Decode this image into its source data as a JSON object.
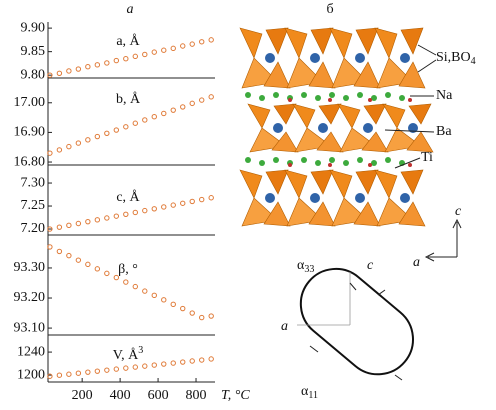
{
  "panel_letters": [
    "а",
    "б"
  ],
  "chart_data": [
    {
      "type": "scatter",
      "title": "a, Å",
      "color": "#e07b39",
      "x": [
        30,
        80,
        130,
        180,
        230,
        280,
        330,
        380,
        430,
        480,
        530,
        580,
        630,
        680,
        730,
        780,
        830,
        880
      ],
      "values": [
        9.8,
        9.804,
        9.809,
        9.813,
        9.818,
        9.822,
        9.826,
        9.831,
        9.835,
        9.84,
        9.844,
        9.849,
        9.853,
        9.857,
        9.862,
        9.866,
        9.871,
        9.875
      ],
      "xlim": [
        20,
        900
      ],
      "ylim": [
        9.794,
        9.913
      ],
      "yticks": [
        {
          "value": 9.8,
          "label": "9.80"
        },
        {
          "value": 9.85,
          "label": "9.85"
        },
        {
          "value": 9.9,
          "label": "9.90"
        }
      ]
    },
    {
      "type": "scatter",
      "title": "b, Å",
      "color": "#e07b39",
      "x": [
        30,
        80,
        130,
        180,
        230,
        280,
        330,
        380,
        430,
        480,
        530,
        580,
        630,
        680,
        730,
        780,
        830,
        880
      ],
      "values": [
        16.83,
        16.841,
        16.852,
        16.864,
        16.875,
        16.886,
        16.897,
        16.908,
        16.919,
        16.931,
        16.942,
        16.953,
        16.964,
        16.975,
        16.986,
        16.998,
        17.009,
        17.02
      ],
      "xlim": [
        20,
        900
      ],
      "ylim": [
        16.79,
        17.06
      ],
      "yticks": [
        {
          "value": 16.8,
          "label": "16.80"
        },
        {
          "value": 16.9,
          "label": "16.90"
        },
        {
          "value": 17.0,
          "label": "17.00"
        }
      ]
    },
    {
      "type": "scatter",
      "title": "c, Å",
      "color": "#e07b39",
      "x": [
        30,
        80,
        130,
        180,
        230,
        280,
        330,
        380,
        430,
        480,
        530,
        580,
        630,
        680,
        730,
        780,
        830,
        880
      ],
      "values": [
        7.2,
        7.204,
        7.208,
        7.212,
        7.216,
        7.22,
        7.224,
        7.228,
        7.232,
        7.236,
        7.24,
        7.244,
        7.248,
        7.252,
        7.256,
        7.26,
        7.264,
        7.268
      ],
      "xlim": [
        20,
        900
      ],
      "ylim": [
        7.187,
        7.324
      ],
      "yticks": [
        {
          "value": 7.2,
          "label": "7.20"
        },
        {
          "value": 7.25,
          "label": "7.25"
        },
        {
          "value": 7.3,
          "label": "7.30"
        }
      ]
    },
    {
      "type": "scatter",
      "title": "β, °",
      "color": "#e07b39",
      "x": [
        30,
        80,
        130,
        180,
        230,
        280,
        330,
        380,
        430,
        480,
        530,
        580,
        630,
        680,
        730,
        780,
        830,
        880
      ],
      "values": [
        93.37,
        93.355,
        93.341,
        93.326,
        93.312,
        93.297,
        93.282,
        93.268,
        93.253,
        93.238,
        93.223,
        93.209,
        93.194,
        93.179,
        93.165,
        93.15,
        93.135,
        93.14
      ],
      "xlim": [
        20,
        900
      ],
      "ylim": [
        93.077,
        93.393
      ],
      "yticks": [
        {
          "value": 93.1,
          "label": "93.10"
        },
        {
          "value": 93.2,
          "label": "93.20"
        },
        {
          "value": 93.3,
          "label": "93.30"
        }
      ]
    },
    {
      "type": "scatter",
      "title": {
        "text": "V, Å",
        "sup": "3"
      },
      "color": "#e07b39",
      "x": [
        30,
        80,
        130,
        180,
        230,
        280,
        330,
        380,
        430,
        480,
        530,
        580,
        630,
        680,
        730,
        780,
        830,
        880
      ],
      "values": [
        1198.0,
        1199.8,
        1201.5,
        1203.3,
        1205.1,
        1206.8,
        1208.6,
        1210.4,
        1212.1,
        1213.9,
        1215.6,
        1217.4,
        1219.2,
        1220.9,
        1222.7,
        1224.5,
        1226.2,
        1228.0
      ],
      "xlim": [
        20,
        900
      ],
      "ylim": [
        1188,
        1261
      ],
      "yticks": [
        1200,
        1240
      ],
      "xticks": [
        200,
        400,
        600,
        800
      ],
      "xlabel": "T, °C"
    }
  ],
  "structure": {
    "labels": [
      {
        "text": "Si,BO",
        "sub": "4"
      },
      {
        "text": "Na"
      },
      {
        "text": "Ba"
      },
      {
        "text": "Ti"
      }
    ],
    "axes": [
      "c",
      "a"
    ]
  },
  "expansion": {
    "alpha33": {
      "text": "α",
      "sub": "33"
    },
    "alpha11": {
      "text": "α",
      "sub": "11"
    },
    "c": "c",
    "a": "a"
  }
}
